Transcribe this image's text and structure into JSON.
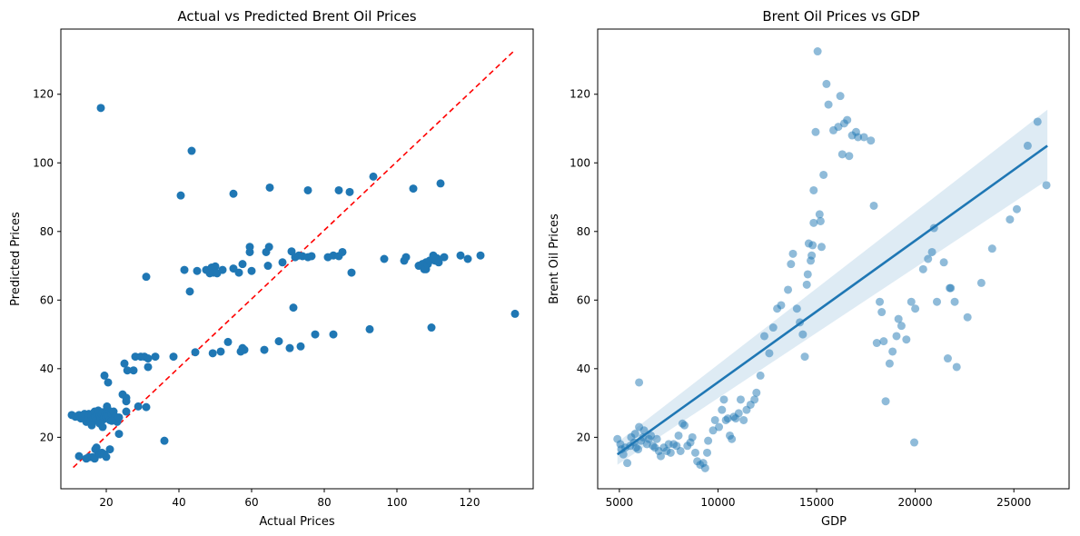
{
  "chart_data": [
    {
      "type": "scatter",
      "title": "Actual vs Predicted Brent Oil Prices",
      "xlabel": "Actual Prices",
      "ylabel": "Predicted Prices",
      "xlim": [
        7.5,
        137.5
      ],
      "ylim": [
        5,
        139
      ],
      "xticks": [
        20,
        40,
        60,
        80,
        100,
        120
      ],
      "yticks": [
        20,
        40,
        60,
        80,
        100,
        120
      ],
      "grid": false,
      "marker_color": "#1f77b4",
      "reference_line": {
        "style": "dashed",
        "color": "#ff0000",
        "from": [
          10.9,
          11.2
        ],
        "to": [
          132.6,
          133
        ]
      },
      "points": [
        [
          10.5,
          26.5
        ],
        [
          11.5,
          26
        ],
        [
          12.5,
          26.5
        ],
        [
          13,
          25.5
        ],
        [
          13.5,
          26.3
        ],
        [
          14,
          26.8
        ],
        [
          14.5,
          24.5
        ],
        [
          15,
          25.5
        ],
        [
          15.2,
          26.8
        ],
        [
          15.8,
          24.8
        ],
        [
          16,
          26.3
        ],
        [
          16.5,
          25.5
        ],
        [
          16.8,
          27.5
        ],
        [
          17,
          26
        ],
        [
          17.2,
          25
        ],
        [
          17.5,
          26.8
        ],
        [
          17.8,
          27.8
        ],
        [
          18,
          24.5
        ],
        [
          18.2,
          26.2
        ],
        [
          18.5,
          25.6
        ],
        [
          18.8,
          26.7
        ],
        [
          19,
          27.3
        ],
        [
          19.2,
          25.2
        ],
        [
          19.5,
          26
        ],
        [
          19.8,
          27
        ],
        [
          20,
          25.8
        ],
        [
          20.2,
          26.5
        ],
        [
          20.5,
          28
        ],
        [
          20.8,
          26.2
        ],
        [
          21,
          25
        ],
        [
          21.5,
          26.8
        ],
        [
          22,
          27.5
        ],
        [
          22.5,
          26
        ],
        [
          23,
          24.5
        ],
        [
          19,
          23
        ],
        [
          21.5,
          24.8
        ],
        [
          23.5,
          25.8
        ],
        [
          25.5,
          27.5
        ],
        [
          16,
          23.5
        ],
        [
          18.2,
          24
        ],
        [
          12.5,
          14.5
        ],
        [
          14.5,
          13.8
        ],
        [
          15.2,
          14.2
        ],
        [
          16.2,
          14.2
        ],
        [
          16.8,
          13.8
        ],
        [
          17,
          16.5
        ],
        [
          17.3,
          17
        ],
        [
          17.8,
          15.5
        ],
        [
          18.3,
          15
        ],
        [
          18.8,
          15.5
        ],
        [
          19.5,
          15
        ],
        [
          20,
          14.3
        ],
        [
          21,
          16.5
        ],
        [
          23.5,
          21
        ],
        [
          19.5,
          38
        ],
        [
          20.5,
          36
        ],
        [
          20.2,
          29
        ],
        [
          36,
          19
        ],
        [
          18.5,
          116
        ],
        [
          24.5,
          32.5
        ],
        [
          25.5,
          31.5
        ],
        [
          25.5,
          30.5
        ],
        [
          25,
          41.5
        ],
        [
          25.8,
          39.5
        ],
        [
          27.5,
          39.5
        ],
        [
          28,
          43.5
        ],
        [
          28.8,
          29
        ],
        [
          29.5,
          43.5
        ],
        [
          30.5,
          43.5
        ],
        [
          31,
          28.8
        ],
        [
          31.5,
          40.5
        ],
        [
          31.5,
          43
        ],
        [
          33.5,
          43.5
        ],
        [
          31,
          66.8
        ],
        [
          38.5,
          43.5
        ],
        [
          43,
          62.5
        ],
        [
          44.5,
          44.8
        ],
        [
          41.5,
          68.8
        ],
        [
          43.5,
          103.5
        ],
        [
          45,
          68.5
        ],
        [
          47.5,
          68.8
        ],
        [
          48.3,
          68.5
        ],
        [
          48.5,
          67.8
        ],
        [
          49,
          69.5
        ],
        [
          49.5,
          68
        ],
        [
          50,
          69.8
        ],
        [
          50.5,
          67.8
        ],
        [
          52,
          68.8
        ],
        [
          49.3,
          44.5
        ],
        [
          51.5,
          45
        ],
        [
          53.5,
          47.8
        ],
        [
          55,
          69.2
        ],
        [
          56.5,
          68
        ],
        [
          57.5,
          70.5
        ],
        [
          57,
          45
        ],
        [
          58,
          45.5
        ],
        [
          57.5,
          46
        ],
        [
          59.5,
          74
        ],
        [
          59.5,
          75.5
        ],
        [
          60,
          68.5
        ],
        [
          63.5,
          45.5
        ],
        [
          64.5,
          70
        ],
        [
          64,
          74
        ],
        [
          64.8,
          75.5
        ],
        [
          67.5,
          48
        ],
        [
          68.5,
          71
        ],
        [
          70.5,
          46
        ],
        [
          71,
          74.2
        ],
        [
          71.5,
          57.8
        ],
        [
          72,
          72.5
        ],
        [
          73,
          73
        ],
        [
          73.5,
          46.5
        ],
        [
          74,
          72.8
        ],
        [
          75.5,
          72.5
        ],
        [
          76.5,
          72.8
        ],
        [
          77.5,
          50
        ],
        [
          81,
          72.5
        ],
        [
          82.5,
          73
        ],
        [
          82.5,
          50
        ],
        [
          84,
          72.8
        ],
        [
          85,
          74
        ],
        [
          87.5,
          68
        ],
        [
          92.5,
          51.5
        ],
        [
          96.5,
          72
        ],
        [
          102,
          71.5
        ],
        [
          102.5,
          72.5
        ],
        [
          106,
          70
        ],
        [
          107,
          70.5
        ],
        [
          107.5,
          69
        ],
        [
          108,
          69
        ],
        [
          108,
          71
        ],
        [
          108.5,
          70.5
        ],
        [
          109.5,
          52
        ],
        [
          109,
          71.5
        ],
        [
          110,
          73
        ],
        [
          110.5,
          71.5
        ],
        [
          111,
          72.2
        ],
        [
          111.5,
          71
        ],
        [
          113,
          72.5
        ],
        [
          117.5,
          73
        ],
        [
          119.5,
          72
        ],
        [
          123,
          73
        ],
        [
          132.5,
          56
        ],
        [
          40.5,
          90.5
        ],
        [
          55,
          91
        ],
        [
          65,
          92.8
        ],
        [
          75.5,
          92
        ],
        [
          84,
          92
        ],
        [
          87,
          91.5
        ],
        [
          93.5,
          96
        ],
        [
          104.5,
          92.5
        ],
        [
          112,
          94
        ]
      ]
    },
    {
      "type": "scatter",
      "title": "Brent Oil Prices vs GDP",
      "xlabel": "GDP",
      "ylabel": "Brent Oil Prices",
      "xlim": [
        3900,
        27800
      ],
      "ylim": [
        5,
        139
      ],
      "xticks": [
        5000,
        10000,
        15000,
        20000,
        25000
      ],
      "yticks": [
        20,
        40,
        60,
        80,
        100,
        120
      ],
      "grid": false,
      "marker_color": "#1f77b4",
      "marker_alpha": 0.5,
      "regression": {
        "x0": 4900,
        "y0": 15,
        "x1": 26700,
        "y1": 105,
        "ci_start": [
          12,
          18.5
        ],
        "ci_end": [
          95,
          115.5
        ]
      },
      "points": [
        [
          4900,
          19.5
        ],
        [
          5050,
          18
        ],
        [
          5100,
          16.5
        ],
        [
          5200,
          15
        ],
        [
          5300,
          17
        ],
        [
          5400,
          12.5
        ],
        [
          5550,
          17.5
        ],
        [
          5600,
          20
        ],
        [
          5750,
          18.5
        ],
        [
          5800,
          21
        ],
        [
          5850,
          17
        ],
        [
          5950,
          16.5
        ],
        [
          6000,
          36
        ],
        [
          6000,
          23
        ],
        [
          6100,
          19
        ],
        [
          6200,
          20
        ],
        [
          6250,
          22
        ],
        [
          6400,
          18
        ],
        [
          6500,
          19.5
        ],
        [
          6600,
          20.5
        ],
        [
          6700,
          17.5
        ],
        [
          6800,
          17
        ],
        [
          6900,
          19.5
        ],
        [
          7000,
          16
        ],
        [
          7100,
          14.5
        ],
        [
          7250,
          17
        ],
        [
          7400,
          16
        ],
        [
          7500,
          18
        ],
        [
          7600,
          15.5
        ],
        [
          7750,
          18
        ],
        [
          7900,
          17.5
        ],
        [
          8000,
          20.5
        ],
        [
          8100,
          16
        ],
        [
          8200,
          24
        ],
        [
          8300,
          23.5
        ],
        [
          8450,
          17.5
        ],
        [
          8600,
          18.5
        ],
        [
          8700,
          20
        ],
        [
          8850,
          15.5
        ],
        [
          8950,
          13
        ],
        [
          9100,
          12
        ],
        [
          9250,
          12.5
        ],
        [
          9350,
          11
        ],
        [
          9450,
          15.5
        ],
        [
          9500,
          19
        ],
        [
          9750,
          22
        ],
        [
          9850,
          25
        ],
        [
          10050,
          23
        ],
        [
          10200,
          28
        ],
        [
          10300,
          31
        ],
        [
          10400,
          25
        ],
        [
          10500,
          25.5
        ],
        [
          10600,
          20.5
        ],
        [
          10700,
          19.5
        ],
        [
          10800,
          26
        ],
        [
          10900,
          25.5
        ],
        [
          11050,
          27
        ],
        [
          11150,
          31
        ],
        [
          11300,
          25
        ],
        [
          11450,
          28
        ],
        [
          11650,
          29.5
        ],
        [
          11850,
          31
        ],
        [
          11950,
          33
        ],
        [
          12150,
          38
        ],
        [
          12350,
          49.5
        ],
        [
          12600,
          44.5
        ],
        [
          12800,
          52
        ],
        [
          13000,
          57.5
        ],
        [
          13200,
          58.5
        ],
        [
          13550,
          63
        ],
        [
          13700,
          70.5
        ],
        [
          13800,
          73.5
        ],
        [
          14000,
          57.5
        ],
        [
          14150,
          53.5
        ],
        [
          14300,
          50
        ],
        [
          14400,
          43.5
        ],
        [
          14500,
          64.5
        ],
        [
          14550,
          67.5
        ],
        [
          14600,
          76.5
        ],
        [
          14700,
          71.5
        ],
        [
          14750,
          73
        ],
        [
          14800,
          76
        ],
        [
          14850,
          82.5
        ],
        [
          14850,
          92
        ],
        [
          14950,
          109
        ],
        [
          15050,
          132.5
        ],
        [
          15150,
          85
        ],
        [
          15200,
          83
        ],
        [
          15250,
          75.5
        ],
        [
          15350,
          96.5
        ],
        [
          15500,
          123
        ],
        [
          15600,
          117
        ],
        [
          15850,
          109.5
        ],
        [
          16100,
          110.5
        ],
        [
          16200,
          119.5
        ],
        [
          16300,
          102.5
        ],
        [
          16400,
          111.5
        ],
        [
          16550,
          112.5
        ],
        [
          16650,
          102
        ],
        [
          16800,
          108
        ],
        [
          17000,
          109
        ],
        [
          17100,
          107.5
        ],
        [
          17400,
          107.5
        ],
        [
          17750,
          106.5
        ],
        [
          17900,
          87.5
        ],
        [
          18050,
          47.5
        ],
        [
          18200,
          59.5
        ],
        [
          18300,
          56.5
        ],
        [
          18400,
          48
        ],
        [
          18500,
          30.5
        ],
        [
          18700,
          41.5
        ],
        [
          18850,
          45
        ],
        [
          19050,
          49.5
        ],
        [
          19150,
          54.5
        ],
        [
          19300,
          52.5
        ],
        [
          19550,
          48.5
        ],
        [
          19800,
          59.5
        ],
        [
          19950,
          18.5
        ],
        [
          20000,
          57.5
        ],
        [
          20400,
          69
        ],
        [
          20650,
          72
        ],
        [
          20850,
          74
        ],
        [
          20950,
          81
        ],
        [
          21100,
          59.5
        ],
        [
          21450,
          71
        ],
        [
          21650,
          43
        ],
        [
          21750,
          63.5
        ],
        [
          21800,
          63.5
        ],
        [
          22000,
          59.5
        ],
        [
          22100,
          40.5
        ],
        [
          22650,
          55
        ],
        [
          23350,
          65
        ],
        [
          23900,
          75
        ],
        [
          24800,
          83.5
        ],
        [
          25150,
          86.5
        ],
        [
          25700,
          105
        ],
        [
          26200,
          112
        ],
        [
          26650,
          93.5
        ]
      ]
    }
  ]
}
